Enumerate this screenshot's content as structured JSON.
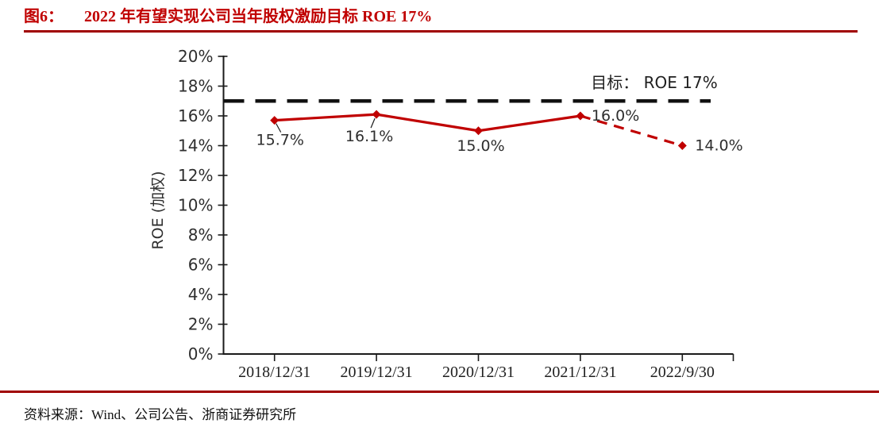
{
  "page": {
    "figure_label": "图6：",
    "figure_title": "2022 年有望实现公司当年股权激励目标 ROE 17%",
    "source_text": "资料来源：Wind、公司公告、浙商证券研究所",
    "accent_color": "#C00000",
    "rule_color": "#A00000"
  },
  "chart_data": {
    "type": "line",
    "categories": [
      "2018/12/31",
      "2019/12/31",
      "2020/12/31",
      "2021/12/31",
      "2022/9/30"
    ],
    "series": [
      {
        "name": "ROE (加权)",
        "values": [
          15.7,
          16.1,
          15.0,
          16.0,
          14.0
        ],
        "point_labels": [
          "15.7%",
          "16.1%",
          "15.0%",
          "16.0%",
          "14.0%"
        ],
        "color": "#C00000",
        "dashed_from_index": 3,
        "marker": "diamond"
      }
    ],
    "target_line": {
      "value": 17,
      "label": "目标： ROE 17%",
      "color": "#111111",
      "style": "dashed"
    },
    "ylabel": "ROE (加权)",
    "xlabel": "",
    "ylim": [
      0,
      20
    ],
    "ytick_step": 2,
    "ytick_suffix": "%",
    "grid": false,
    "legend": "none",
    "text_color": "#2e2e2e",
    "axis_color": "#1a1a1a"
  }
}
